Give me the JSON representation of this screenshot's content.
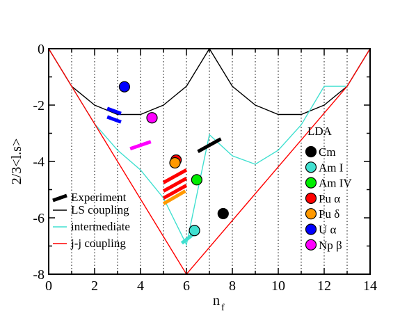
{
  "chart_data": {
    "type": "scatter",
    "xlabel": "n",
    "xlabel_sub": "f",
    "ylabel": "2/3<l.s>",
    "xlim": [
      0,
      14
    ],
    "ylim": [
      -8,
      0
    ],
    "xticks": [
      0,
      2,
      4,
      6,
      8,
      10,
      12,
      14
    ],
    "yticks": [
      0,
      -2,
      -4,
      -6,
      -8
    ],
    "grid": "vertical dotted lines at integer n_f",
    "colors": {
      "ls": "#000000",
      "intermediate": "#40e0d0",
      "jj": "#ff0000",
      "experiment": "#000000"
    },
    "lines": [
      {
        "name": "LS coupling",
        "color": "#000000",
        "x": [
          0,
          1,
          2,
          3,
          4,
          5,
          6,
          7,
          8,
          9,
          10,
          11,
          12,
          13,
          14
        ],
        "y": [
          0,
          -1.333,
          -2,
          -2.333,
          -2.333,
          -2,
          -1.333,
          0,
          -1.333,
          -2,
          -2.333,
          -2.333,
          -2,
          -1.333,
          0
        ]
      },
      {
        "name": "intermediate",
        "color": "#40e0d0",
        "x": [
          0,
          1,
          2,
          3,
          4,
          5,
          6,
          7,
          8,
          9,
          10,
          11,
          12,
          13,
          14
        ],
        "y": [
          0,
          -1.333,
          -2.667,
          -3.6,
          -4.3,
          -5.3,
          -6.95,
          -3.05,
          -3.8,
          -4.1,
          -3.6,
          -2.7,
          -1.333,
          -1.333,
          0
        ]
      },
      {
        "name": "j-j coupling",
        "color": "#ff0000",
        "x": [
          0,
          1,
          6,
          13,
          14
        ],
        "y": [
          0,
          -1.333,
          -8,
          -1.333,
          0
        ]
      }
    ],
    "experiment": {
      "name": "Experiment",
      "segments": [
        {
          "x": [
            2.55,
            3.15
          ],
          "y": [
            -2.12,
            -2.3
          ],
          "color": "#0000ff"
        },
        {
          "x": [
            2.55,
            3.15
          ],
          "y": [
            -2.42,
            -2.6
          ],
          "color": "#0000ff"
        },
        {
          "x": [
            3.55,
            4.45
          ],
          "y": [
            -3.55,
            -3.3
          ],
          "color": "#ff00ff"
        },
        {
          "x": [
            5.0,
            6.0
          ],
          "y": [
            -4.75,
            -4.3
          ],
          "color": "#ff0000"
        },
        {
          "x": [
            5.0,
            6.0
          ],
          "y": [
            -5.05,
            -4.6
          ],
          "color": "#ff0000"
        },
        {
          "x": [
            5.0,
            6.0
          ],
          "y": [
            -5.3,
            -4.85
          ],
          "color": "#ff0000"
        },
        {
          "x": [
            5.0,
            5.95
          ],
          "y": [
            -5.5,
            -5.05
          ],
          "color": "#ff9900"
        },
        {
          "x": [
            5.8,
            6.35
          ],
          "y": [
            -6.9,
            -6.55
          ],
          "color": "#40e0d0"
        },
        {
          "x": [
            6.5,
            7.5
          ],
          "y": [
            -3.65,
            -3.2
          ],
          "color": "#000000"
        }
      ]
    },
    "legend_title": "LDA",
    "series": [
      {
        "name": "Cm",
        "color": "#000000",
        "points": [
          {
            "x": 7.6,
            "y": -5.85
          }
        ]
      },
      {
        "name": "Am I",
        "color": "#40e0d0",
        "points": [
          {
            "x": 6.35,
            "y": -6.45
          }
        ]
      },
      {
        "name": "Am IV",
        "color": "#00ee00",
        "points": [
          {
            "x": 6.45,
            "y": -4.65
          }
        ]
      },
      {
        "name": "Pu α",
        "color": "#ff0000",
        "points": [
          {
            "x": 5.55,
            "y": -3.95
          }
        ]
      },
      {
        "name": "Pu δ",
        "color": "#ff9900",
        "points": [
          {
            "x": 5.5,
            "y": -4.05
          }
        ]
      },
      {
        "name": "U α",
        "color": "#0000ff",
        "points": [
          {
            "x": 3.3,
            "y": -1.35
          }
        ]
      },
      {
        "name": "Np β",
        "color": "#ff00ff",
        "points": [
          {
            "x": 4.5,
            "y": -2.45
          }
        ]
      }
    ]
  }
}
